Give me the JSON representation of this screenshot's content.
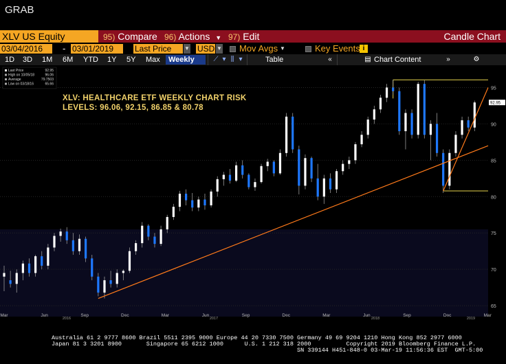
{
  "window": {
    "title": "GRAB"
  },
  "toolbar1": {
    "ticker": "XLV US Equity",
    "compare": {
      "num": "95)",
      "label": "Compare"
    },
    "actions": {
      "num": "96)",
      "label": "Actions"
    },
    "edit": {
      "num": "97)",
      "label": "Edit"
    },
    "chart_type": "Candle Chart"
  },
  "toolbar2": {
    "start_date": "03/04/2016",
    "end_date": "03/01/2019",
    "field": "Last Price",
    "currency": "USD",
    "mov_avgs": "Mov Avgs",
    "key_events": "Key Events"
  },
  "toolbar3": {
    "periods": [
      "1D",
      "3D",
      "1M",
      "6M",
      "YTD",
      "1Y",
      "5Y",
      "Max"
    ],
    "frequency": "Weekly",
    "table_label": "Table",
    "chart_content": "Chart Content"
  },
  "legend": {
    "rows": [
      {
        "label": "Last Price",
        "value": "92.95"
      },
      {
        "label": "High on 10/05/18",
        "value": "96.06"
      },
      {
        "label": "Average",
        "value": "79.7503"
      },
      {
        "label": "Low on 03/18/16",
        "value": "65.66"
      }
    ]
  },
  "annotation": {
    "line1": "XLV: HEALTHCARE ETF WEEKLY CHART RISK",
    "line2": "LEVELS: 96.06, 92.15, 86.85 & 80.78"
  },
  "colors": {
    "up_candle": "#ffffff",
    "down_candle": "#1e78ff",
    "trendline": "#ff7a1a",
    "box": "#e8d44d",
    "accent": "#f5a623",
    "menu_bg": "#8b0f1f"
  },
  "chart_data": {
    "type": "candlestick",
    "frequency": "Weekly",
    "x_tick_labels": [
      "Mar",
      "Jun",
      "Sep",
      "Dec",
      "Mar",
      "Jun",
      "Sep",
      "Dec",
      "Mar",
      "Jun",
      "Sep",
      "Dec",
      "Mar"
    ],
    "year_labels": [
      "2016",
      "2017",
      "2018",
      "2019"
    ],
    "y_ticks": [
      65,
      70,
      75,
      80,
      85,
      90,
      95
    ],
    "ylim": [
      63.5,
      97.5
    ],
    "last_price_label": "92.95",
    "series": [
      {
        "t": 0,
        "o": 69.0,
        "h": 70.5,
        "l": 67.0,
        "c": 69.5
      },
      {
        "t": 2,
        "o": 68.5,
        "h": 69.8,
        "l": 67.5,
        "c": 68.0
      },
      {
        "t": 4,
        "o": 68.0,
        "h": 70.0,
        "l": 66.8,
        "c": 69.5
      },
      {
        "t": 6,
        "o": 69.5,
        "h": 71.2,
        "l": 68.5,
        "c": 70.8
      },
      {
        "t": 8,
        "o": 70.8,
        "h": 71.5,
        "l": 69.0,
        "c": 69.5
      },
      {
        "t": 10,
        "o": 69.5,
        "h": 72.0,
        "l": 69.0,
        "c": 71.8
      },
      {
        "t": 12,
        "o": 71.8,
        "h": 72.5,
        "l": 70.0,
        "c": 70.5
      },
      {
        "t": 14,
        "o": 70.5,
        "h": 73.5,
        "l": 70.0,
        "c": 73.0
      },
      {
        "t": 16,
        "o": 73.0,
        "h": 75.0,
        "l": 72.5,
        "c": 74.6
      },
      {
        "t": 18,
        "o": 74.6,
        "h": 75.6,
        "l": 73.8,
        "c": 75.2
      },
      {
        "t": 20,
        "o": 75.2,
        "h": 75.8,
        "l": 73.5,
        "c": 74.0
      },
      {
        "t": 22,
        "o": 74.0,
        "h": 75.0,
        "l": 72.0,
        "c": 72.5
      },
      {
        "t": 24,
        "o": 72.5,
        "h": 74.8,
        "l": 72.0,
        "c": 74.2
      },
      {
        "t": 26,
        "o": 74.2,
        "h": 74.5,
        "l": 71.0,
        "c": 71.5
      },
      {
        "t": 28,
        "o": 71.5,
        "h": 72.0,
        "l": 68.5,
        "c": 69.0
      },
      {
        "t": 30,
        "o": 69.0,
        "h": 69.5,
        "l": 66.3,
        "c": 66.8
      },
      {
        "t": 32,
        "o": 66.8,
        "h": 69.0,
        "l": 66.0,
        "c": 68.5
      },
      {
        "t": 34,
        "o": 68.5,
        "h": 69.8,
        "l": 67.5,
        "c": 68.0
      },
      {
        "t": 36,
        "o": 68.0,
        "h": 70.0,
        "l": 67.5,
        "c": 69.5
      },
      {
        "t": 38,
        "o": 69.5,
        "h": 70.0,
        "l": 68.5,
        "c": 69.8
      },
      {
        "t": 40,
        "o": 69.8,
        "h": 73.0,
        "l": 69.5,
        "c": 72.5
      },
      {
        "t": 42,
        "o": 72.5,
        "h": 74.0,
        "l": 72.0,
        "c": 73.6
      },
      {
        "t": 44,
        "o": 73.6,
        "h": 76.5,
        "l": 73.0,
        "c": 76.0
      },
      {
        "t": 46,
        "o": 76.0,
        "h": 76.2,
        "l": 74.0,
        "c": 74.5
      },
      {
        "t": 48,
        "o": 74.5,
        "h": 75.0,
        "l": 73.0,
        "c": 73.5
      },
      {
        "t": 50,
        "o": 73.5,
        "h": 76.0,
        "l": 73.2,
        "c": 75.5
      },
      {
        "t": 52,
        "o": 75.5,
        "h": 77.5,
        "l": 75.0,
        "c": 77.2
      },
      {
        "t": 54,
        "o": 77.2,
        "h": 79.0,
        "l": 76.8,
        "c": 78.6
      },
      {
        "t": 56,
        "o": 78.6,
        "h": 80.8,
        "l": 78.0,
        "c": 80.4
      },
      {
        "t": 58,
        "o": 80.4,
        "h": 81.0,
        "l": 78.8,
        "c": 79.5
      },
      {
        "t": 60,
        "o": 79.5,
        "h": 80.5,
        "l": 78.0,
        "c": 78.5
      },
      {
        "t": 62,
        "o": 78.5,
        "h": 80.0,
        "l": 78.0,
        "c": 79.6
      },
      {
        "t": 64,
        "o": 79.6,
        "h": 80.4,
        "l": 78.2,
        "c": 78.8
      },
      {
        "t": 66,
        "o": 78.8,
        "h": 81.0,
        "l": 78.5,
        "c": 80.7
      },
      {
        "t": 68,
        "o": 80.7,
        "h": 82.8,
        "l": 80.0,
        "c": 82.4
      },
      {
        "t": 70,
        "o": 82.4,
        "h": 83.4,
        "l": 81.5,
        "c": 83.0
      },
      {
        "t": 72,
        "o": 83.0,
        "h": 83.8,
        "l": 81.8,
        "c": 82.2
      },
      {
        "t": 74,
        "o": 82.2,
        "h": 84.8,
        "l": 82.0,
        "c": 84.3
      },
      {
        "t": 76,
        "o": 84.3,
        "h": 85.0,
        "l": 82.5,
        "c": 83.0
      },
      {
        "t": 78,
        "o": 83.0,
        "h": 83.2,
        "l": 81.0,
        "c": 81.3
      },
      {
        "t": 80,
        "o": 81.3,
        "h": 82.5,
        "l": 80.8,
        "c": 82.0
      },
      {
        "t": 82,
        "o": 82.0,
        "h": 84.5,
        "l": 81.8,
        "c": 84.2
      },
      {
        "t": 84,
        "o": 84.2,
        "h": 85.2,
        "l": 83.5,
        "c": 84.8
      },
      {
        "t": 86,
        "o": 84.8,
        "h": 85.0,
        "l": 82.8,
        "c": 83.2
      },
      {
        "t": 88,
        "o": 83.2,
        "h": 86.5,
        "l": 83.0,
        "c": 86.0
      },
      {
        "t": 90,
        "o": 86.0,
        "h": 91.5,
        "l": 85.5,
        "c": 91.0
      },
      {
        "t": 92,
        "o": 91.0,
        "h": 91.5,
        "l": 86.0,
        "c": 86.5
      },
      {
        "t": 94,
        "o": 86.5,
        "h": 87.0,
        "l": 80.3,
        "c": 81.5
      },
      {
        "t": 96,
        "o": 81.5,
        "h": 85.8,
        "l": 81.0,
        "c": 85.3
      },
      {
        "t": 98,
        "o": 85.3,
        "h": 85.5,
        "l": 82.0,
        "c": 82.5
      },
      {
        "t": 100,
        "o": 82.5,
        "h": 84.5,
        "l": 79.5,
        "c": 80.0
      },
      {
        "t": 102,
        "o": 80.0,
        "h": 83.0,
        "l": 79.0,
        "c": 82.5
      },
      {
        "t": 104,
        "o": 82.5,
        "h": 83.2,
        "l": 80.5,
        "c": 81.0
      },
      {
        "t": 106,
        "o": 81.0,
        "h": 83.8,
        "l": 80.5,
        "c": 83.5
      },
      {
        "t": 108,
        "o": 83.5,
        "h": 85.0,
        "l": 83.0,
        "c": 84.5
      },
      {
        "t": 110,
        "o": 84.5,
        "h": 85.5,
        "l": 83.8,
        "c": 85.0
      },
      {
        "t": 112,
        "o": 85.0,
        "h": 87.5,
        "l": 84.5,
        "c": 87.2
      },
      {
        "t": 114,
        "o": 87.2,
        "h": 89.0,
        "l": 86.8,
        "c": 88.5
      },
      {
        "t": 116,
        "o": 88.5,
        "h": 91.0,
        "l": 88.0,
        "c": 90.6
      },
      {
        "t": 118,
        "o": 90.6,
        "h": 92.5,
        "l": 90.0,
        "c": 92.0
      },
      {
        "t": 120,
        "o": 92.0,
        "h": 94.0,
        "l": 91.5,
        "c": 93.6
      },
      {
        "t": 122,
        "o": 93.6,
        "h": 95.5,
        "l": 93.0,
        "c": 95.0
      },
      {
        "t": 124,
        "o": 95.0,
        "h": 96.06,
        "l": 94.0,
        "c": 94.5
      },
      {
        "t": 126,
        "o": 94.5,
        "h": 95.0,
        "l": 88.5,
        "c": 89.0
      },
      {
        "t": 128,
        "o": 89.0,
        "h": 92.0,
        "l": 86.5,
        "c": 91.5
      },
      {
        "t": 130,
        "o": 91.5,
        "h": 92.0,
        "l": 88.0,
        "c": 88.5
      },
      {
        "t": 132,
        "o": 88.5,
        "h": 95.8,
        "l": 88.0,
        "c": 95.5
      },
      {
        "t": 134,
        "o": 95.5,
        "h": 96.0,
        "l": 88.0,
        "c": 88.5
      },
      {
        "t": 136,
        "o": 88.5,
        "h": 90.5,
        "l": 85.0,
        "c": 90.0
      },
      {
        "t": 138,
        "o": 90.0,
        "h": 91.5,
        "l": 85.5,
        "c": 86.0
      },
      {
        "t": 140,
        "o": 86.0,
        "h": 86.5,
        "l": 80.5,
        "c": 81.5
      },
      {
        "t": 142,
        "o": 81.5,
        "h": 86.5,
        "l": 81.0,
        "c": 86.0
      },
      {
        "t": 144,
        "o": 86.0,
        "h": 89.0,
        "l": 85.5,
        "c": 88.5
      },
      {
        "t": 146,
        "o": 88.5,
        "h": 91.0,
        "l": 88.0,
        "c": 90.5
      },
      {
        "t": 148,
        "o": 90.5,
        "h": 91.0,
        "l": 89.0,
        "c": 89.5
      },
      {
        "t": 150,
        "o": 89.5,
        "h": 93.2,
        "l": 89.0,
        "c": 92.95
      }
    ],
    "t_max": 153
  }
}
